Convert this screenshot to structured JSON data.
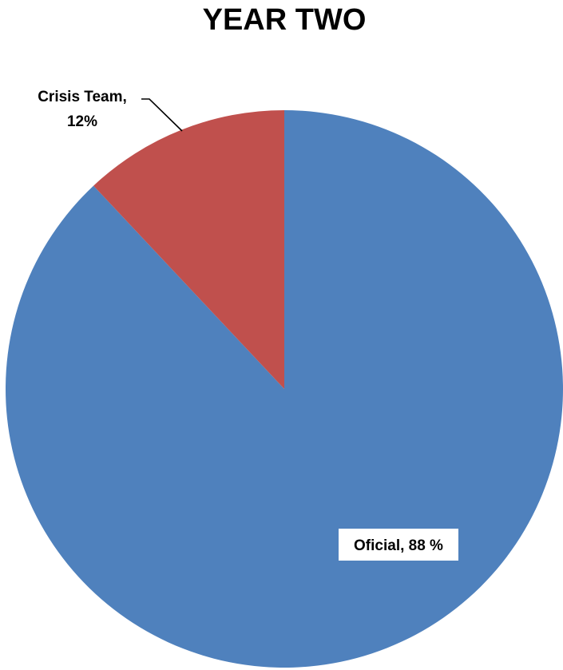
{
  "chart_data": {
    "type": "pie",
    "title": "YEAR TWO",
    "slices": [
      {
        "name": "Oficial",
        "value": 88,
        "label": "Oficial, 88 %",
        "color": "#4F81BD"
      },
      {
        "name": "Crisis Team",
        "value": 12,
        "label_lines": [
          "Crisis Team,",
          "12%"
        ],
        "color": "#C0504D"
      }
    ],
    "start_angle": "12 o'clock",
    "direction": "clockwise",
    "legend": "none"
  }
}
